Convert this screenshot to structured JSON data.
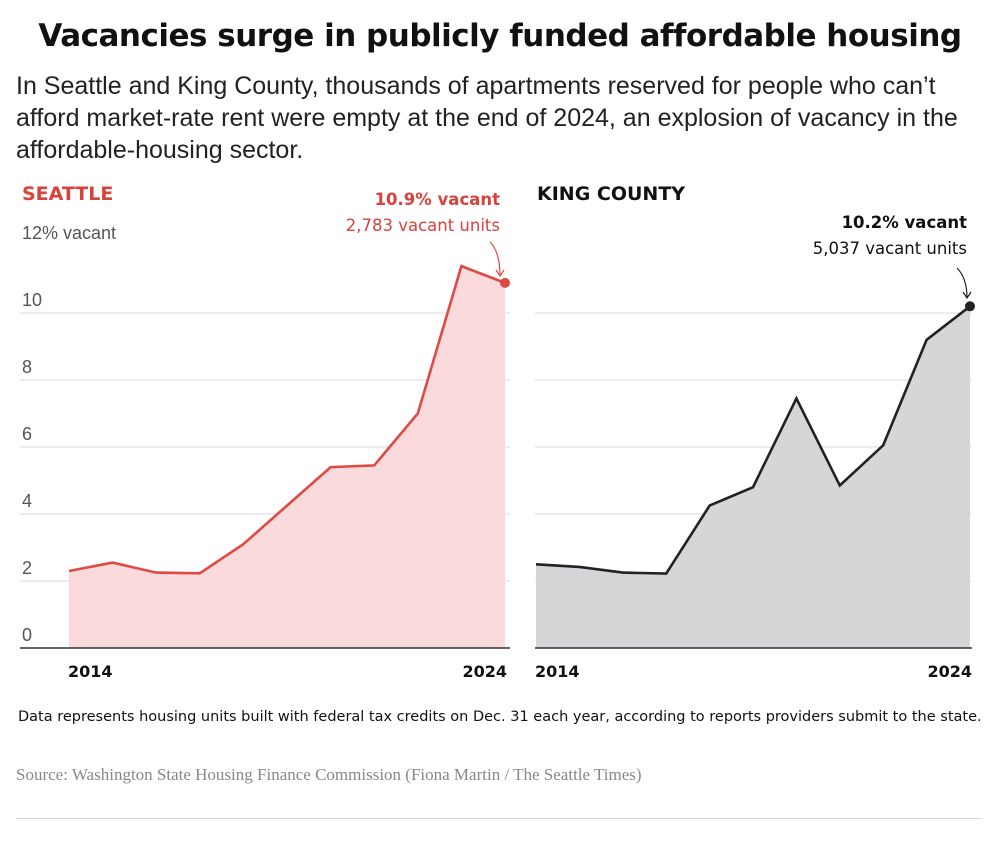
{
  "header": {
    "title": "Vacancies surge in publicly funded affordable housing",
    "subtitle": "In Seattle and King County, thousands of apartments reserved for people who can’t afford market-rate rent were empty at the end of 2024, an explosion of vacancy in the affordable-housing sector."
  },
  "colors": {
    "seattle_line": "#e04a44",
    "seattle_fill": "#fadada",
    "seattle_label": "#d9413c",
    "king_line": "#222222",
    "king_fill": "#d6d6d8",
    "grid": "#d9d9d9",
    "axis": "#333333"
  },
  "chart_data": [
    {
      "type": "area",
      "panel": "SEATTLE",
      "title": "SEATTLE",
      "x": [
        2014,
        2015,
        2016,
        2017,
        2018,
        2019,
        2020,
        2021,
        2022,
        2023,
        2024
      ],
      "values": [
        2.3,
        2.55,
        2.25,
        2.23,
        3.1,
        4.25,
        5.4,
        5.45,
        7.0,
        11.4,
        10.9
      ],
      "ylim": [
        0,
        12
      ],
      "yticks": [
        "0",
        "2",
        "4",
        "6",
        "8",
        "10",
        "12% vacant"
      ],
      "xticks": [
        "2014",
        "2024"
      ],
      "annotation": {
        "bold": "10.9% vacant",
        "text": "2,783 vacant units"
      }
    },
    {
      "type": "area",
      "panel": "KING COUNTY",
      "title": "KING COUNTY",
      "x": [
        2014,
        2015,
        2016,
        2017,
        2018,
        2019,
        2020,
        2021,
        2022,
        2023,
        2024
      ],
      "values": [
        2.5,
        2.42,
        2.25,
        2.22,
        4.25,
        4.8,
        7.45,
        4.85,
        6.05,
        9.2,
        10.2
      ],
      "ylim": [
        0,
        12
      ],
      "xticks": [
        "2014",
        "2024"
      ],
      "annotation": {
        "bold": "10.2% vacant",
        "text": "5,037 vacant units"
      }
    }
  ],
  "footer": {
    "note": "Data represents housing units built with federal tax credits on Dec. 31 each year, according to reports providers submit to the state.",
    "source": "Source: Washington State Housing Finance Commission (Fiona Martin / The Seattle Times)"
  }
}
